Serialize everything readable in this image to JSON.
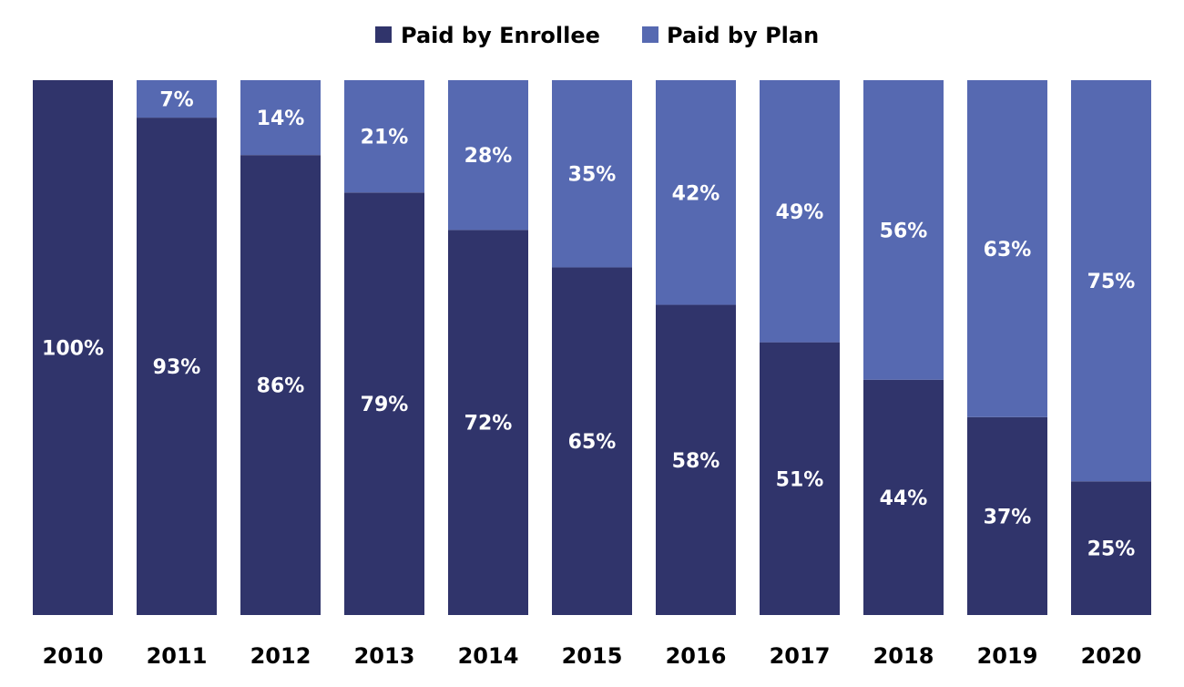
{
  "chart_data": {
    "type": "bar",
    "stacked": true,
    "normalized": true,
    "categories": [
      "2010",
      "2011",
      "2012",
      "2013",
      "2014",
      "2015",
      "2016",
      "2017",
      "2018",
      "2019",
      "2020"
    ],
    "series": [
      {
        "name": "Paid by Enrollee",
        "color": "#30346b",
        "values": [
          100,
          93,
          86,
          79,
          72,
          65,
          58,
          51,
          44,
          37,
          25
        ],
        "labels": [
          "100%",
          "93%",
          "86%",
          "79%",
          "72%",
          "65%",
          "58%",
          "51%",
          "44%",
          "37%",
          "25%"
        ]
      },
      {
        "name": "Paid by Plan",
        "color": "#5669b1",
        "values": [
          0,
          7,
          14,
          21,
          28,
          35,
          42,
          49,
          56,
          63,
          75
        ],
        "labels": [
          "",
          "7%",
          "14%",
          "21%",
          "28%",
          "35%",
          "42%",
          "49%",
          "56%",
          "63%",
          "75%"
        ]
      }
    ],
    "ylim": [
      0,
      100
    ],
    "grid": false,
    "legend": "top-center"
  }
}
